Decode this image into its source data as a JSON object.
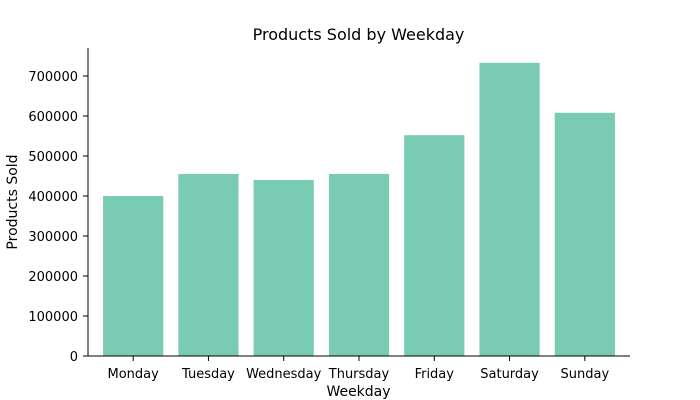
{
  "chart_data": {
    "type": "bar",
    "title": "Products Sold by Weekday",
    "xlabel": "Weekday",
    "ylabel": "Products Sold",
    "categories": [
      "Monday",
      "Tuesday",
      "Wednesday",
      "Thursday",
      "Friday",
      "Saturday",
      "Sunday"
    ],
    "values": [
      400000,
      455000,
      440000,
      455000,
      552000,
      733000,
      608000
    ],
    "ylim": [
      0,
      770000
    ],
    "yticks": [
      0,
      100000,
      200000,
      300000,
      400000,
      500000,
      600000,
      700000
    ],
    "grid": false,
    "legend": "none",
    "bar_color": "#7ACBB3"
  }
}
